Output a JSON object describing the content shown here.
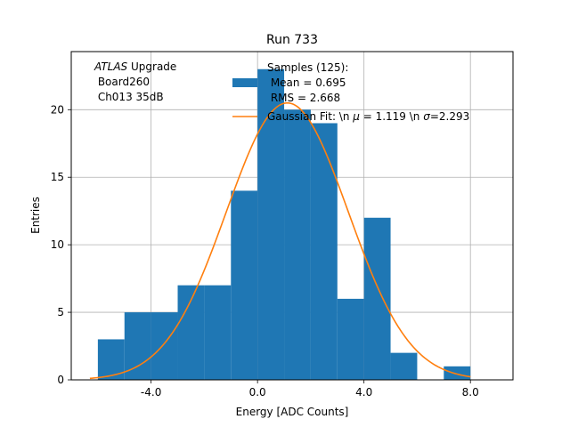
{
  "chart_data": {
    "type": "bar",
    "title": "Run 733",
    "xlabel": "Energy [ADC Counts]",
    "ylabel": "Entries",
    "xlim": [
      -7.0,
      9.6
    ],
    "ylim": [
      0,
      24.3
    ],
    "xticks": [
      -4.0,
      0.0,
      4.0,
      8.0
    ],
    "xtick_labels": [
      "-4.0",
      "0.0",
      "4.0",
      "8.0"
    ],
    "yticks": [
      0,
      5,
      10,
      15,
      20
    ],
    "ytick_labels": [
      "0",
      "5",
      "10",
      "15",
      "20"
    ],
    "grid": true,
    "histogram": {
      "name": "Samples (125)",
      "color": "#1f77b4",
      "bin_edges": [
        -6,
        -5,
        -4,
        -3,
        -2,
        -1,
        0,
        1,
        2,
        3,
        4,
        5,
        6,
        7,
        8
      ],
      "counts": [
        3,
        5,
        5,
        7,
        7,
        14,
        23,
        20,
        19,
        6,
        12,
        2,
        0,
        1
      ]
    },
    "gaussian_fit": {
      "name": "Gaussian Fit",
      "color": "#ff7f0e",
      "mu": 1.119,
      "sigma": 2.293,
      "amplitude": 20.5,
      "x_range": [
        -6.3,
        8.0
      ]
    },
    "legend": {
      "position": "top-right",
      "hist_lines": [
        "Samples (125):",
        " Mean = 0.695",
        " RMS = 2.668"
      ],
      "fit_label": "Gaussian Fit: \\n $\\mu$ = 1.119 \\n $\\sigma$=2.293"
    },
    "annotation": {
      "atlas_italic": "ATLAS",
      "atlas_rest": " Upgrade",
      "line2": " Board260",
      "line3": " Ch013 35dB"
    }
  }
}
